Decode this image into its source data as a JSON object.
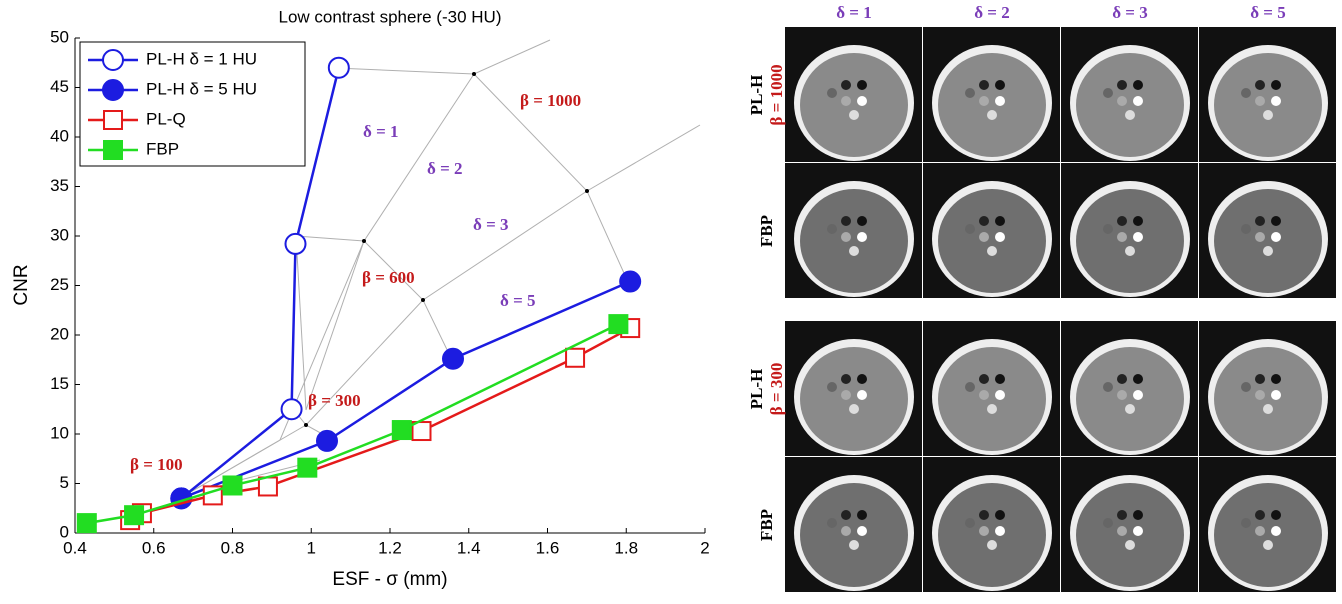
{
  "chart_data": {
    "type": "line",
    "title": "Low contrast sphere (-30 HU)",
    "xlabel": "ESF - σ (mm)",
    "ylabel": "CNR",
    "xlim": [
      0.4,
      2
    ],
    "ylim": [
      0,
      50
    ],
    "xticks": [
      0.4,
      0.6,
      0.8,
      1,
      1.2,
      1.4,
      1.6,
      1.8,
      2
    ],
    "yticks": [
      0,
      5,
      10,
      15,
      20,
      25,
      30,
      35,
      40,
      45,
      50
    ],
    "legend": "upper left",
    "series": [
      {
        "name": "PL-H δ = 1 HU",
        "color": "#1c1ce0",
        "marker": "circle-open",
        "x": [
          0.67,
          0.95,
          0.96,
          1.07
        ],
        "values": [
          3.5,
          12.5,
          29.2,
          47
        ]
      },
      {
        "name": "PL-H δ = 5 HU",
        "color": "#1c1ce0",
        "marker": "circle-filled",
        "x": [
          0.67,
          1.04,
          1.36,
          1.81
        ],
        "values": [
          3.5,
          9.3,
          17.6,
          25.4
        ]
      },
      {
        "name": "PL-Q",
        "color": "#e41a1a",
        "marker": "square-open",
        "x": [
          0.54,
          0.57,
          0.75,
          0.89,
          1.28,
          1.67,
          1.81
        ],
        "values": [
          1.3,
          2,
          3.8,
          4.7,
          10.3,
          17.7,
          20.7
        ]
      },
      {
        "name": "FBP",
        "color": "#22dd22",
        "marker": "square-filled",
        "x": [
          0.43,
          0.55,
          0.8,
          0.99,
          1.23,
          1.78
        ],
        "values": [
          1,
          1.8,
          4.8,
          6.6,
          10.4,
          21.1
        ]
      }
    ],
    "annotations": [
      "δ = 1",
      "δ = 2",
      "δ = 3",
      "δ = 5",
      "β = 1000",
      "β = 600",
      "β = 300",
      "β = 100"
    ]
  },
  "images": {
    "columns": [
      "δ = 1",
      "δ = 2",
      "δ = 3",
      "δ = 5"
    ],
    "rows": [
      [
        "PL-H",
        "β = 1000"
      ],
      [
        "FBP"
      ],
      [
        "PL-H",
        "β = 300"
      ],
      [
        "FBP"
      ]
    ]
  }
}
